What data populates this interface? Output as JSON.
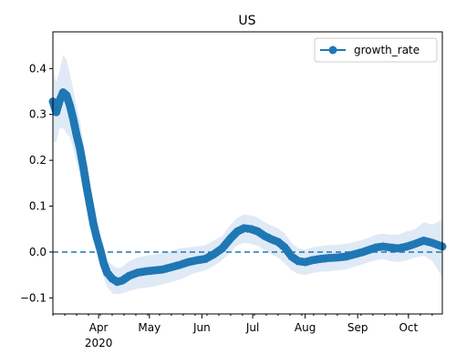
{
  "chart_data": {
    "type": "line",
    "title": "US",
    "xlabel": "",
    "ylabel": "",
    "x_range": [
      "2020-03-05",
      "2020-10-21"
    ],
    "ylim": [
      -0.135,
      0.48
    ],
    "y_ticks": [
      -0.1,
      0.0,
      0.1,
      0.2,
      0.3,
      0.4
    ],
    "y_tick_labels": [
      "−0.1",
      "0.0",
      "0.1",
      "0.2",
      "0.3",
      "0.4"
    ],
    "x_ticks": [
      {
        "date": "2020-04-01",
        "label": "Apr"
      },
      {
        "date": "2020-05-01",
        "label": "May"
      },
      {
        "date": "2020-06-01",
        "label": "Jun"
      },
      {
        "date": "2020-07-01",
        "label": "Jul"
      },
      {
        "date": "2020-08-01",
        "label": "Aug"
      },
      {
        "date": "2020-09-01",
        "label": "Sep"
      },
      {
        "date": "2020-10-01",
        "label": "Oct"
      }
    ],
    "x_year_label": {
      "date": "2020-04-01",
      "label": "2020"
    },
    "reference_line": {
      "y": 0.0,
      "style": "dashed",
      "color": "#1f77b4"
    },
    "grid": false,
    "legend": {
      "position": "top-right",
      "entries": [
        "growth_rate"
      ]
    },
    "series": [
      {
        "name": "growth_rate",
        "color": "#1f77b4",
        "band_color": "#dfeaf6",
        "marker": "circle",
        "x": [
          "2020-03-05",
          "2020-03-07",
          "2020-03-09",
          "2020-03-11",
          "2020-03-13",
          "2020-03-15",
          "2020-03-17",
          "2020-03-19",
          "2020-03-21",
          "2020-03-23",
          "2020-03-25",
          "2020-03-27",
          "2020-03-29",
          "2020-03-31",
          "2020-04-02",
          "2020-04-04",
          "2020-04-06",
          "2020-04-09",
          "2020-04-12",
          "2020-04-15",
          "2020-04-19",
          "2020-04-24",
          "2020-04-29",
          "2020-05-04",
          "2020-05-09",
          "2020-05-14",
          "2020-05-19",
          "2020-05-24",
          "2020-05-29",
          "2020-06-03",
          "2020-06-08",
          "2020-06-13",
          "2020-06-18",
          "2020-06-22",
          "2020-06-26",
          "2020-06-30",
          "2020-07-04",
          "2020-07-08",
          "2020-07-12",
          "2020-07-16",
          "2020-07-20",
          "2020-07-24",
          "2020-07-28",
          "2020-08-01",
          "2020-08-05",
          "2020-08-10",
          "2020-08-15",
          "2020-08-20",
          "2020-08-25",
          "2020-08-30",
          "2020-09-04",
          "2020-09-08",
          "2020-09-12",
          "2020-09-16",
          "2020-09-20",
          "2020-09-25",
          "2020-09-30",
          "2020-10-05",
          "2020-10-10",
          "2020-10-15",
          "2020-10-21"
        ],
        "values": [
          0.328,
          0.305,
          0.33,
          0.348,
          0.342,
          0.32,
          0.29,
          0.255,
          0.225,
          0.185,
          0.14,
          0.1,
          0.06,
          0.03,
          0.005,
          -0.025,
          -0.045,
          -0.058,
          -0.065,
          -0.062,
          -0.052,
          -0.045,
          -0.042,
          -0.04,
          -0.038,
          -0.033,
          -0.028,
          -0.022,
          -0.018,
          -0.015,
          -0.005,
          0.008,
          0.03,
          0.045,
          0.052,
          0.05,
          0.045,
          0.035,
          0.028,
          0.022,
          0.01,
          -0.01,
          -0.02,
          -0.022,
          -0.018,
          -0.015,
          -0.013,
          -0.012,
          -0.01,
          -0.005,
          0.0,
          0.005,
          0.01,
          0.012,
          0.01,
          0.008,
          0.012,
          0.018,
          0.025,
          0.02,
          0.012
        ],
        "band_lower": [
          0.24,
          0.24,
          0.27,
          0.27,
          0.26,
          0.25,
          0.225,
          0.195,
          0.165,
          0.135,
          0.1,
          0.065,
          0.03,
          0.0,
          -0.025,
          -0.055,
          -0.075,
          -0.09,
          -0.092,
          -0.09,
          -0.085,
          -0.08,
          -0.078,
          -0.075,
          -0.07,
          -0.065,
          -0.06,
          -0.052,
          -0.045,
          -0.04,
          -0.03,
          -0.018,
          0.0,
          0.015,
          0.02,
          0.018,
          0.013,
          0.005,
          -0.005,
          -0.012,
          -0.025,
          -0.04,
          -0.048,
          -0.05,
          -0.046,
          -0.043,
          -0.042,
          -0.04,
          -0.038,
          -0.032,
          -0.027,
          -0.022,
          -0.018,
          -0.015,
          -0.02,
          -0.022,
          -0.018,
          -0.012,
          -0.008,
          -0.02,
          -0.055
        ],
        "band_upper": [
          0.4,
          0.37,
          0.395,
          0.43,
          0.42,
          0.39,
          0.355,
          0.315,
          0.285,
          0.24,
          0.185,
          0.14,
          0.095,
          0.06,
          0.035,
          0.005,
          -0.018,
          -0.028,
          -0.035,
          -0.032,
          -0.02,
          -0.012,
          -0.008,
          -0.005,
          -0.002,
          0.003,
          0.008,
          0.01,
          0.012,
          0.015,
          0.025,
          0.035,
          0.06,
          0.075,
          0.082,
          0.08,
          0.075,
          0.065,
          0.058,
          0.052,
          0.04,
          0.02,
          0.008,
          0.005,
          0.01,
          0.013,
          0.015,
          0.016,
          0.018,
          0.022,
          0.027,
          0.032,
          0.038,
          0.04,
          0.038,
          0.038,
          0.045,
          0.05,
          0.065,
          0.06,
          0.07
        ]
      }
    ]
  }
}
